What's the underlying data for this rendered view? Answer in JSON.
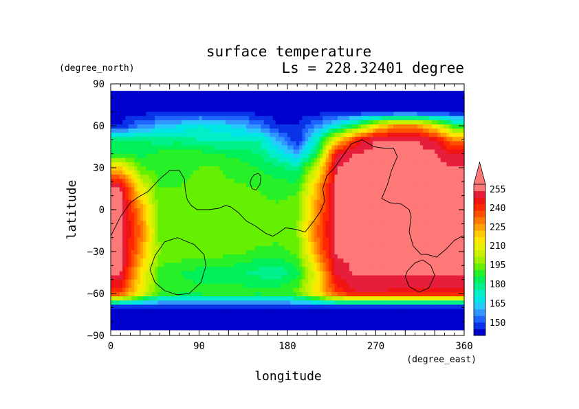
{
  "chart_data": {
    "type": "heatmap",
    "title": "surface temperature",
    "subtitle": "Ls = 228.32401 degree",
    "xlabel": "longitude",
    "ylabel": "latitude",
    "x_units": "(degree_east)",
    "y_units": "(degree_north)",
    "xlim": [
      0,
      360
    ],
    "ylim": [
      -90,
      90
    ],
    "x_ticks": [
      "0",
      "90",
      "180",
      "270",
      "360"
    ],
    "y_ticks": [
      "90",
      "60",
      "30",
      "0",
      "−30",
      "−60",
      "−90"
    ],
    "colorbar": {
      "levels": [
        145,
        150,
        155,
        160,
        165,
        170,
        175,
        180,
        185,
        190,
        195,
        200,
        205,
        210,
        215,
        220,
        225,
        230,
        235,
        240,
        245,
        250,
        255,
        260
      ],
      "labels": [
        "150",
        "165",
        "180",
        "195",
        "210",
        "225",
        "240",
        "255"
      ],
      "colors": [
        "#0000cd",
        "#0a32e6",
        "#1e64ff",
        "#3296ff",
        "#28c8ff",
        "#00e6e6",
        "#00eec8",
        "#00f08c",
        "#00f05a",
        "#28f028",
        "#64f000",
        "#a0f000",
        "#c8f000",
        "#e6f000",
        "#ffe600",
        "#ffc800",
        "#ffa000",
        "#ff7800",
        "#ff5000",
        "#ff2800",
        "#f01414",
        "#e61e3c",
        "#ff7878"
      ],
      "extend": "max"
    },
    "grid": [
      [
        148,
        148,
        148,
        148,
        148,
        148,
        148,
        148,
        148,
        148,
        148,
        148,
        148,
        148,
        148,
        148,
        148,
        148
      ],
      [
        148,
        148,
        148,
        148,
        148,
        148,
        148,
        148,
        148,
        148,
        148,
        148,
        148,
        148,
        148,
        148,
        148,
        148
      ],
      [
        150,
        160,
        165,
        170,
        175,
        172,
        168,
        160,
        150,
        150,
        160,
        175,
        190,
        215,
        230,
        230,
        215,
        190
      ],
      [
        185,
        185,
        182,
        182,
        180,
        178,
        178,
        180,
        165,
        150,
        178,
        215,
        245,
        256,
        256,
        256,
        250,
        230
      ],
      [
        190,
        188,
        192,
        195,
        192,
        190,
        188,
        185,
        175,
        165,
        188,
        250,
        256,
        256,
        256,
        256,
        256,
        250
      ],
      [
        220,
        196,
        192,
        194,
        195,
        195,
        193,
        190,
        186,
        182,
        210,
        256,
        256,
        256,
        256,
        256,
        256,
        256
      ],
      [
        256,
        215,
        195,
        195,
        196,
        196,
        196,
        195,
        193,
        194,
        225,
        256,
        256,
        256,
        256,
        256,
        256,
        256
      ],
      [
        256,
        230,
        195,
        196,
        198,
        198,
        197,
        196,
        196,
        198,
        230,
        256,
        256,
        256,
        256,
        256,
        256,
        256
      ],
      [
        256,
        235,
        198,
        199,
        200,
        199,
        198,
        198,
        198,
        200,
        235,
        256,
        256,
        256,
        256,
        256,
        256,
        256
      ],
      [
        256,
        230,
        200,
        199,
        198,
        198,
        196,
        194,
        193,
        197,
        230,
        256,
        256,
        256,
        256,
        256,
        256,
        256
      ],
      [
        256,
        220,
        193,
        190,
        188,
        187,
        186,
        183,
        181,
        188,
        215,
        252,
        256,
        256,
        256,
        256,
        256,
        256
      ],
      [
        240,
        215,
        195,
        192,
        192,
        193,
        193,
        192,
        193,
        198,
        218,
        240,
        250,
        250,
        248,
        248,
        248,
        248
      ],
      [
        148,
        148,
        148,
        148,
        148,
        148,
        148,
        148,
        148,
        148,
        148,
        148,
        148,
        148,
        148,
        148,
        148,
        148
      ],
      [
        148,
        148,
        148,
        148,
        148,
        148,
        148,
        148,
        148,
        148,
        148,
        148,
        148,
        148,
        148,
        148,
        148,
        148
      ]
    ],
    "grid_lats": [
      85,
      70,
      60,
      50,
      40,
      30,
      15,
      0,
      -15,
      -30,
      -45,
      -60,
      -70,
      -85
    ],
    "grid_lon_step": 20,
    "coastlines": [
      [
        [
          0,
          -19
        ],
        [
          10,
          -5
        ],
        [
          20,
          5
        ],
        [
          28,
          9
        ],
        [
          38,
          13
        ],
        [
          50,
          22
        ],
        [
          60,
          28
        ],
        [
          70,
          28
        ],
        [
          75,
          22
        ],
        [
          76,
          14
        ],
        [
          78,
          7
        ],
        [
          82,
          3
        ],
        [
          88,
          0
        ],
        [
          100,
          0
        ],
        [
          110,
          1
        ],
        [
          117,
          3
        ],
        [
          122,
          2
        ],
        [
          130,
          -2
        ],
        [
          138,
          -8
        ],
        [
          148,
          -12
        ],
        [
          158,
          -17
        ],
        [
          165,
          -19
        ],
        [
          170,
          -17
        ],
        [
          178,
          -13
        ],
        [
          188,
          -14
        ],
        [
          198,
          -16
        ],
        [
          206,
          -9
        ],
        [
          214,
          -1
        ],
        [
          218,
          6
        ],
        [
          216,
          15
        ],
        [
          220,
          24
        ],
        [
          228,
          30
        ],
        [
          235,
          37
        ],
        [
          245,
          47
        ],
        [
          256,
          50
        ],
        [
          268,
          45
        ],
        [
          278,
          44
        ],
        [
          288,
          44
        ],
        [
          292,
          38
        ],
        [
          286,
          28
        ],
        [
          282,
          18
        ],
        [
          276,
          8
        ],
        [
          284,
          5
        ],
        [
          296,
          4
        ],
        [
          304,
          0
        ],
        [
          306,
          -5
        ],
        [
          304,
          -16
        ],
        [
          308,
          -26
        ],
        [
          316,
          -32
        ],
        [
          322,
          -32
        ],
        [
          332,
          -34
        ],
        [
          342,
          -28
        ],
        [
          350,
          -22
        ],
        [
          358,
          -19
        ],
        [
          360,
          -19
        ]
      ],
      [
        [
          45,
          -33
        ],
        [
          55,
          -23
        ],
        [
          68,
          -20
        ],
        [
          85,
          -25
        ],
        [
          95,
          -32
        ],
        [
          97,
          -40
        ],
        [
          92,
          -52
        ],
        [
          80,
          -60
        ],
        [
          68,
          -61
        ],
        [
          55,
          -58
        ],
        [
          45,
          -52
        ],
        [
          40,
          -43
        ],
        [
          45,
          -33
        ]
      ],
      [
        [
          302,
          -44
        ],
        [
          310,
          -38
        ],
        [
          318,
          -36
        ],
        [
          326,
          -40
        ],
        [
          330,
          -47
        ],
        [
          324,
          -56
        ],
        [
          314,
          -59
        ],
        [
          304,
          -55
        ],
        [
          300,
          -48
        ],
        [
          302,
          -44
        ]
      ],
      [
        [
          143,
          22
        ],
        [
          146,
          25
        ],
        [
          150,
          26
        ],
        [
          153,
          24
        ],
        [
          152,
          18
        ],
        [
          148,
          14
        ],
        [
          144,
          15
        ],
        [
          142,
          19
        ],
        [
          143,
          22
        ]
      ]
    ]
  }
}
